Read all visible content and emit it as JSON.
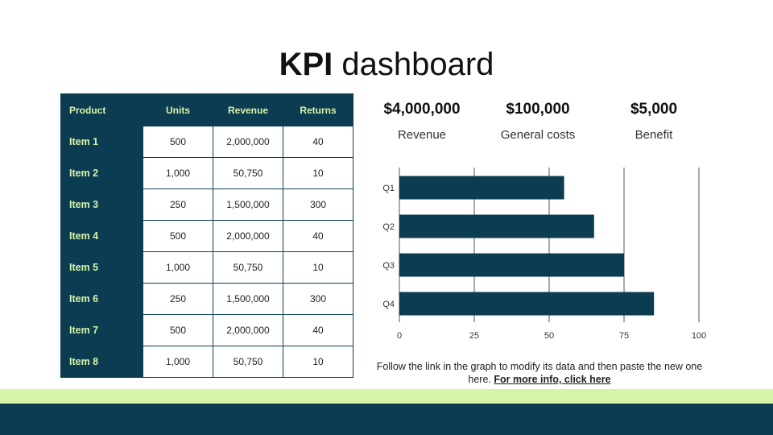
{
  "title": {
    "bold": "KPI",
    "light": "dashboard"
  },
  "table": {
    "headers": [
      "Product",
      "Units",
      "Revenue",
      "Returns"
    ],
    "rows": [
      {
        "product": "Item 1",
        "units": "500",
        "revenue": "2,000,000",
        "returns": "40"
      },
      {
        "product": "Item 2",
        "units": "1,000",
        "revenue": "50,750",
        "returns": "10"
      },
      {
        "product": "Item 3",
        "units": "250",
        "revenue": "1,500,000",
        "returns": "300"
      },
      {
        "product": "Item 4",
        "units": "500",
        "revenue": "2,000,000",
        "returns": "40"
      },
      {
        "product": "Item 5",
        "units": "1,000",
        "revenue": "50,750",
        "returns": "10"
      },
      {
        "product": "Item 6",
        "units": "250",
        "revenue": "1,500,000",
        "returns": "300"
      },
      {
        "product": "Item 7",
        "units": "500",
        "revenue": "2,000,000",
        "returns": "40"
      },
      {
        "product": "Item 8",
        "units": "1,000",
        "revenue": "50,750",
        "returns": "10"
      }
    ]
  },
  "metrics": [
    {
      "value": "$4,000,000",
      "label": "Revenue"
    },
    {
      "value": "$100,000",
      "label": "General costs"
    },
    {
      "value": "$5,000",
      "label": "Benefit"
    }
  ],
  "chart_data": {
    "type": "bar",
    "orientation": "horizontal",
    "categories": [
      "Q1",
      "Q2",
      "Q3",
      "Q4"
    ],
    "values": [
      55,
      65,
      75,
      85
    ],
    "xlim": [
      0,
      100
    ],
    "xticks": [
      0,
      25,
      50,
      75,
      100
    ],
    "grid": true,
    "color": "#0b3c52"
  },
  "note": {
    "text": "Follow the link in the graph to modify its data and then paste the new one here.",
    "link": "For more info, click here"
  },
  "colors": {
    "navy": "#0b3c52",
    "lime": "#d4f5a6",
    "header_text": "#d7f5a8"
  }
}
